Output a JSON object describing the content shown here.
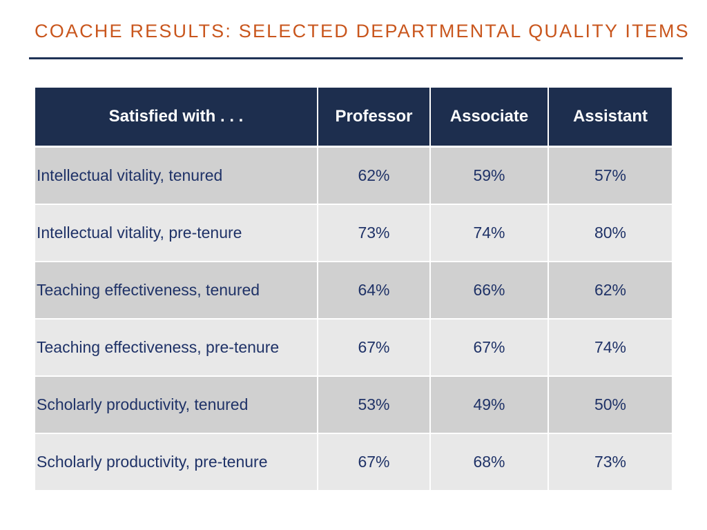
{
  "slide": {
    "title": "COACHE RESULTS: SELECTED DEPARTMENTAL QUALITY ITEMS"
  },
  "table": {
    "headers": [
      "Satisfied with . . .",
      "Professor",
      "Associate",
      "Assistant"
    ],
    "rows": [
      {
        "label": "Intellectual vitality, tenured",
        "professor": "62%",
        "associate": "59%",
        "assistant": "57%"
      },
      {
        "label": "Intellectual vitality, pre-tenure",
        "professor": "73%",
        "associate": "74%",
        "assistant": "80%"
      },
      {
        "label": "Teaching effectiveness, tenured",
        "professor": "64%",
        "associate": "66%",
        "assistant": "62%"
      },
      {
        "label": "Teaching effectiveness, pre-tenure",
        "professor": "67%",
        "associate": "67%",
        "assistant": "74%"
      },
      {
        "label": "Scholarly productivity, tenured",
        "professor": "53%",
        "associate": "49%",
        "assistant": "50%"
      },
      {
        "label": "Scholarly productivity, pre-tenure",
        "professor": "67%",
        "associate": "68%",
        "assistant": "73%"
      }
    ]
  },
  "colors": {
    "title": "#c9561d",
    "rule": "#1f3256",
    "header_bg": "#1d2e4e",
    "row_dark": "#d0d0d0",
    "row_light": "#e8e8e8",
    "cell_text": "#1f3267"
  }
}
